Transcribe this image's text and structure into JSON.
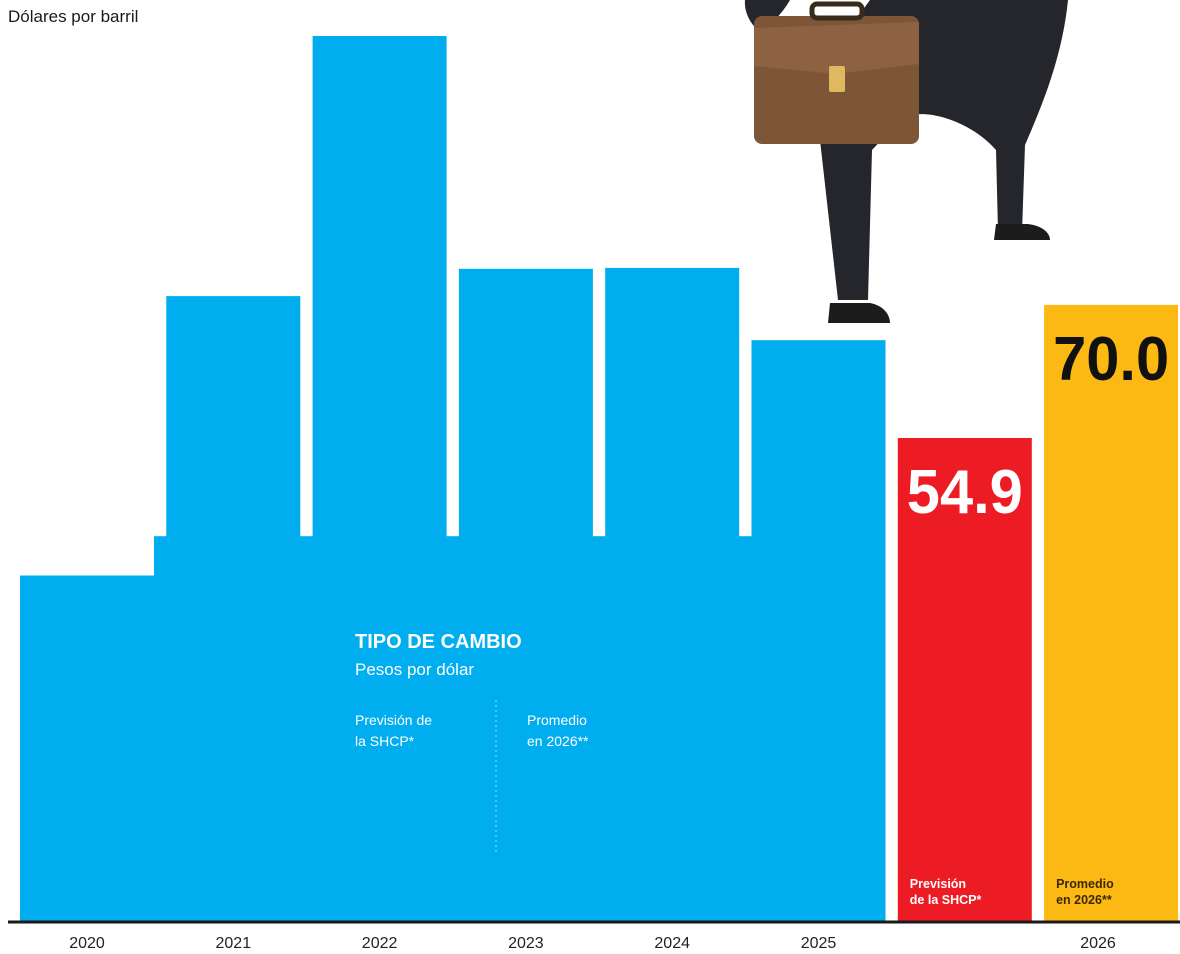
{
  "chart_data": {
    "type": "bar",
    "subtitle": "Dólares por barril",
    "categories": [
      "2020",
      "2021",
      "2022",
      "2023",
      "2024",
      "2025",
      "2026",
      "2026"
    ],
    "tick_labels": [
      "2020",
      "2021",
      "2022",
      "2023",
      "2024",
      "2025",
      "2026"
    ],
    "values": [
      39.3,
      71.0,
      100.5,
      74.1,
      74.2,
      66.0,
      54.9,
      70.0
    ],
    "ylim": [
      0,
      103
    ],
    "data_labels": [
      {
        "index": 6,
        "text": "54.9"
      },
      {
        "index": 7,
        "text": "70.0"
      }
    ],
    "bar_labels": [
      {
        "index": 6,
        "lines": [
          "Previsión",
          "de la SHCP*"
        ]
      },
      {
        "index": 7,
        "lines": [
          "Promedio",
          "en 2026**"
        ]
      }
    ],
    "colors": {
      "history": "#00aeef",
      "shcp": "#ed1c24",
      "average": "#fdb913",
      "baseline": "#1a1a1a"
    },
    "bar_colors": [
      "history",
      "history",
      "history",
      "history",
      "history",
      "history",
      "shcp",
      "average"
    ],
    "legend": "none",
    "grid": false
  },
  "inset": {
    "title": "TIPO DE CAMBIO",
    "subtitle": "Pesos por dólar",
    "left_note": [
      "Previsión de",
      "la SHCP*"
    ],
    "right_note": [
      "Promedio",
      "en 2026**"
    ]
  },
  "illustration": {
    "icon": "businessman-climbing-icon",
    "items": [
      "briefcase-icon",
      "shoe-icon"
    ]
  }
}
